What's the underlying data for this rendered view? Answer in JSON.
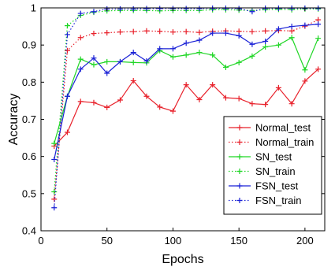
{
  "chart_data": {
    "type": "line",
    "xlabel": "Epochs",
    "ylabel": "Accuracy",
    "xlim": [
      0,
      215
    ],
    "ylim": [
      0.4,
      1.0
    ],
    "xticks": [
      0,
      50,
      100,
      150,
      200
    ],
    "yticks": [
      0.4,
      0.5,
      0.6,
      0.7,
      0.8,
      0.9,
      1.0
    ],
    "ytick_labels": [
      "0.4",
      "0.5",
      "0.6",
      "0.7",
      "0.8",
      "0.9",
      "1"
    ],
    "grid": false,
    "legend_position": "bottom-right",
    "x": [
      10,
      20,
      30,
      40,
      50,
      60,
      70,
      80,
      90,
      100,
      110,
      120,
      130,
      140,
      150,
      160,
      170,
      180,
      190,
      200,
      210
    ],
    "series": [
      {
        "name": "Normal_test",
        "color": "#e8212b",
        "dash": "solid",
        "values": [
          0.628,
          0.665,
          0.748,
          0.745,
          0.732,
          0.752,
          0.804,
          0.762,
          0.733,
          0.722,
          0.793,
          0.753,
          0.793,
          0.758,
          0.756,
          0.742,
          0.74,
          0.785,
          0.742,
          0.803,
          0.835
        ]
      },
      {
        "name": "Normal_train",
        "color": "#e8212b",
        "dash": "dotted",
        "values": [
          0.485,
          0.885,
          0.92,
          0.931,
          0.933,
          0.935,
          0.936,
          0.938,
          0.937,
          0.935,
          0.936,
          0.934,
          0.937,
          0.938,
          0.937,
          0.936,
          0.938,
          0.939,
          0.938,
          0.951,
          0.968
        ]
      },
      {
        "name": "SN_test",
        "color": "#1fd625",
        "dash": "solid",
        "values": [
          0.635,
          0.762,
          0.862,
          0.847,
          0.855,
          0.855,
          0.853,
          0.852,
          0.885,
          0.868,
          0.873,
          0.88,
          0.873,
          0.84,
          0.853,
          0.87,
          0.895,
          0.9,
          0.92,
          0.833,
          0.918
        ]
      },
      {
        "name": "SN_train",
        "color": "#1fd625",
        "dash": "dotted",
        "values": [
          0.505,
          0.952,
          0.98,
          0.988,
          0.992,
          0.993,
          0.993,
          0.993,
          0.992,
          0.993,
          0.993,
          0.993,
          0.995,
          0.995,
          0.994,
          0.993,
          0.995,
          0.996,
          0.995,
          0.997,
          0.997
        ]
      },
      {
        "name": "FSN_test",
        "color": "#1a21d6",
        "dash": "solid",
        "values": [
          0.592,
          0.762,
          0.835,
          0.865,
          0.824,
          0.855,
          0.88,
          0.857,
          0.89,
          0.89,
          0.905,
          0.913,
          0.932,
          0.932,
          0.925,
          0.902,
          0.91,
          0.943,
          0.95,
          0.953,
          0.956
        ]
      },
      {
        "name": "FSN_train",
        "color": "#1a21d6",
        "dash": "dotted",
        "values": [
          0.462,
          0.928,
          0.985,
          0.99,
          0.997,
          0.997,
          0.997,
          0.998,
          0.998,
          0.998,
          0.998,
          0.998,
          0.999,
          0.999,
          0.998,
          0.99,
          0.999,
          0.999,
          0.999,
          0.999,
          0.999
        ]
      }
    ]
  }
}
